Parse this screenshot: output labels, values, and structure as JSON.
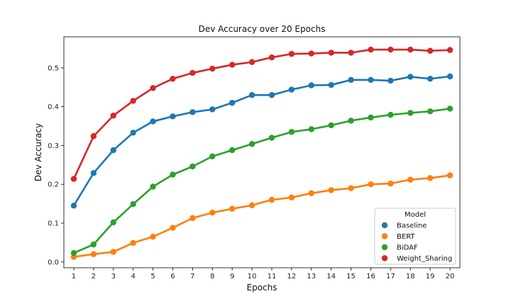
{
  "chart_data": {
    "type": "line",
    "title": "Dev Accuracy over 20 Epochs",
    "xlabel": "Epochs",
    "ylabel": "Dev Accuracy",
    "x": [
      1,
      2,
      3,
      4,
      5,
      6,
      7,
      8,
      9,
      10,
      11,
      12,
      13,
      14,
      15,
      16,
      17,
      18,
      19,
      20
    ],
    "ylim": [
      -0.015,
      0.58
    ],
    "yticks": [
      0.0,
      0.1,
      0.2,
      0.3,
      0.4,
      0.5
    ],
    "ytick_labels": [
      "0.0",
      "0.1",
      "0.2",
      "0.3",
      "0.4",
      "0.5"
    ],
    "grid": false,
    "legend": {
      "title": "Model",
      "placement": "lower-right"
    },
    "series": [
      {
        "name": "Baseline",
        "color": "#1f77b4",
        "values": [
          0.145,
          0.229,
          0.288,
          0.333,
          0.362,
          0.375,
          0.386,
          0.393,
          0.41,
          0.43,
          0.43,
          0.444,
          0.455,
          0.456,
          0.469,
          0.469,
          0.467,
          0.477,
          0.472,
          0.478
        ]
      },
      {
        "name": "BERT",
        "color": "#ff7f0e",
        "values": [
          0.013,
          0.02,
          0.026,
          0.049,
          0.065,
          0.088,
          0.113,
          0.127,
          0.137,
          0.146,
          0.16,
          0.166,
          0.177,
          0.185,
          0.19,
          0.2,
          0.202,
          0.212,
          0.216,
          0.223
        ]
      },
      {
        "name": "BiDAF",
        "color": "#2ca02c",
        "values": [
          0.023,
          0.045,
          0.102,
          0.149,
          0.194,
          0.225,
          0.246,
          0.272,
          0.288,
          0.304,
          0.32,
          0.335,
          0.342,
          0.352,
          0.364,
          0.372,
          0.379,
          0.384,
          0.388,
          0.395
        ]
      },
      {
        "name": "Weight_Sharing",
        "color": "#d62728",
        "values": [
          0.214,
          0.324,
          0.377,
          0.415,
          0.448,
          0.472,
          0.487,
          0.498,
          0.508,
          0.515,
          0.527,
          0.536,
          0.537,
          0.539,
          0.539,
          0.547,
          0.547,
          0.547,
          0.544,
          0.546
        ]
      }
    ]
  }
}
